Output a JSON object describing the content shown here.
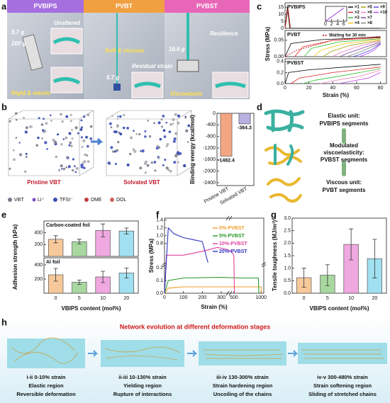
{
  "figure": {
    "panel_labels": [
      "a",
      "b",
      "c",
      "d",
      "e",
      "f",
      "g",
      "h"
    ]
  },
  "photos": {
    "headers": [
      "PVBIPS",
      "PVBT",
      "PVBST"
    ],
    "labels": [
      "5.7 g",
      "200 g",
      "Unaltered",
      "Rigid & elastic",
      "Soft & viscous",
      "Residual strain",
      "5.7 g",
      "16.6 g",
      "Resilience",
      "Viscoelastic"
    ]
  },
  "molecules": {
    "states": [
      "Pristine VBT",
      "Solvated VBT"
    ],
    "legend": [
      "VBT",
      "Li⁺",
      "TFSI⁻",
      "DME",
      "DOL"
    ]
  },
  "schematic": {
    "labels": [
      "Elastic unit:",
      "PVBIPS segments",
      "Modulated",
      "viscoelasticity:",
      "PVBST segments",
      "Viscous unit:",
      "PVBT segments"
    ]
  },
  "network": {
    "title": "Network evolution at different deformation stages",
    "stages": [
      {
        "range": "i-ii  0-10% strain",
        "region": "Elastic region",
        "detail": "Reversible deformation"
      },
      {
        "range": "ii-iii  10-130% strain",
        "region": "Yielding region",
        "detail": "Rupture of interactions"
      },
      {
        "range": "iii-iv  130-300% strain",
        "region": "Strain hardening region",
        "detail": "Uncoiling of the chains"
      },
      {
        "range": "iv-v  300-480% strain",
        "region": "Strain softening region",
        "detail": "Sliding of stretched chains"
      }
    ]
  },
  "chart_data": [
    {
      "type": "line",
      "title": "PVBIPS",
      "xlim": [
        0,
        85
      ],
      "ylim": [
        0,
        18
      ],
      "yticks": [
        0,
        5,
        10,
        15
      ],
      "series": [
        {
          "color": "#000000",
          "x": [
            0,
            2,
            4,
            80
          ],
          "values": [
            0,
            15,
            0,
            0
          ]
        },
        {
          "color": "#e02020",
          "x": [
            0,
            2.5,
            4.5
          ],
          "values": [
            0,
            14,
            0.5
          ]
        }
      ]
    },
    {
      "type": "line",
      "xlim": [
        0,
        7
      ],
      "ylim": [
        0,
        18
      ],
      "xticks": [
        0,
        2,
        4,
        6
      ],
      "series": [
        {
          "color": "#a040e0",
          "x": [
            0,
            6
          ],
          "values": [
            0,
            16
          ]
        }
      ]
    },
    {
      "type": "line",
      "title": "PVBT",
      "xlim": [
        0,
        85
      ],
      "ylim": [
        0,
        0.08
      ],
      "yticks": [
        {
          "value": 0,
          "label": "0.00"
        },
        0.05
      ],
      "ylabel": "Stress (MPa)",
      "legend": true,
      "series": [
        {
          "name": "×1",
          "color": "#000000",
          "x": [
            0,
            5,
            30,
            80
          ],
          "values": [
            0,
            0.04,
            0.052,
            0.06
          ]
        },
        {
          "name": "×2",
          "color": "#e02020",
          "x": [
            8,
            15,
            40,
            80
          ],
          "values": [
            0,
            0.03,
            0.05,
            0.058
          ]
        },
        {
          "name": "×3",
          "color": "#30c030",
          "x": [
            16,
            22,
            45,
            80
          ],
          "values": [
            0,
            0.025,
            0.045,
            0.055
          ]
        },
        {
          "name": "×4",
          "color": "#f0c000",
          "x": [
            24,
            30,
            50,
            80
          ],
          "values": [
            0,
            0.02,
            0.04,
            0.053
          ]
        },
        {
          "name": "×5",
          "color": "#a0a000",
          "x": [
            32,
            38,
            55,
            80
          ],
          "values": [
            0,
            0.015,
            0.035,
            0.05
          ]
        },
        {
          "name": "×6",
          "color": "#f080c0",
          "x": [
            40,
            46,
            60,
            80
          ],
          "values": [
            0,
            0.012,
            0.03,
            0.048
          ]
        },
        {
          "name": "×7",
          "color": "#8040a0",
          "x": [
            46,
            52,
            64,
            80
          ],
          "values": [
            0,
            0.01,
            0.025,
            0.045
          ]
        },
        {
          "name": "×8",
          "color": "#808080",
          "x": [
            52,
            58,
            68,
            80
          ],
          "values": [
            0,
            0.008,
            0.022,
            0.042
          ]
        },
        {
          "name": "×9",
          "color": "#4040e0",
          "x": [
            57,
            62,
            72,
            80
          ],
          "values": [
            0,
            0.006,
            0.02,
            0.04
          ]
        },
        {
          "name": "×10",
          "color": "#c040f0",
          "x": [
            62,
            66,
            74,
            80
          ],
          "values": [
            0,
            0.005,
            0.018,
            0.038
          ]
        },
        {
          "name": "Waiting for 30 min",
          "color": "#c00000",
          "dash": true,
          "x": [
            0,
            10,
            40,
            80
          ],
          "values": [
            0,
            0.02,
            0.05,
            0.062
          ]
        }
      ]
    },
    {
      "type": "line",
      "title": "PVBST",
      "xlim": [
        0,
        85
      ],
      "ylim": [
        0,
        0.45
      ],
      "yticks": [
        {
          "value": 0,
          "label": "0.0"
        },
        0.2,
        0.4
      ],
      "xticks": [
        0,
        20,
        40,
        60,
        80
      ],
      "xlabel": "Strain (%)",
      "series": [
        {
          "color": "#000000",
          "x": [
            0,
            3,
            20,
            80
          ],
          "values": [
            0,
            0.2,
            0.25,
            0.35
          ]
        },
        {
          "color": "#e02020",
          "x": [
            5,
            12,
            40,
            80
          ],
          "values": [
            0,
            0.1,
            0.2,
            0.3
          ]
        },
        {
          "color": "#30c030",
          "x": [
            15,
            25,
            50,
            80
          ],
          "values": [
            0,
            0.06,
            0.15,
            0.27
          ]
        },
        {
          "color": "#f080c0",
          "x": [
            30,
            40,
            60,
            80
          ],
          "values": [
            0,
            0.05,
            0.12,
            0.24
          ]
        },
        {
          "color": "#c040f0",
          "x": [
            45,
            55,
            70,
            80
          ],
          "values": [
            0,
            0.04,
            0.1,
            0.2
          ]
        }
      ]
    },
    {
      "type": "bar",
      "categories": [
        "Pristine VBT",
        "Solvated VBT"
      ],
      "values": [
        -1482.4,
        -364.3
      ],
      "show_values": true,
      "colors": [
        "#f4a582",
        "#b8b0e0"
      ],
      "ylim": [
        -2500,
        0
      ],
      "yticks": [
        0,
        -400,
        -800,
        -1200,
        -1600,
        -2000,
        -2400
      ],
      "ylabel": "Binding energy (kcal/mol)"
    },
    {
      "type": "bar",
      "title": "Carbon-coated foil",
      "values": [
        290,
        250,
        440,
        430
      ],
      "errors": [
        60,
        40,
        110,
        50
      ],
      "colors": [
        "#f7c99a",
        "#a8d8a0",
        "#f0a8e0",
        "#a0e0f0"
      ],
      "ylim": [
        0,
        600
      ],
      "yticks": [
        200,
        400
      ],
      "ylabel": "Adhesion strength (kPa)"
    },
    {
      "type": "bar",
      "title": "Al foil",
      "categories": [
        "0",
        "5",
        "10",
        "20"
      ],
      "values": [
        260,
        155,
        230,
        285
      ],
      "errors": [
        90,
        30,
        80,
        70
      ],
      "colors": [
        "#f7c99a",
        "#a8d8a0",
        "#f0a8e0",
        "#a0e0f0"
      ],
      "ylim": [
        0,
        500
      ],
      "yticks": [
        200,
        400
      ],
      "xlabel": "VBIPS content (mol%)"
    },
    {
      "type": "line",
      "xlim": [
        0,
        1050
      ],
      "xbreak": [
        330,
        450
      ],
      "ylim": [
        0,
        1.45
      ],
      "ybreak": [
        0.22,
        0.35
      ],
      "xticks": [
        0,
        100,
        200,
        300,
        500,
        1000
      ],
      "yticks": [
        {
          "value": 0,
          "label": "0.0"
        },
        0.1,
        0.2,
        0.8,
        {
          "value": 1,
          "label": "1.0"
        },
        1.2,
        1.4
      ],
      "xlabel": "Strain (%)",
      "ylabel": "Stress (MPa)",
      "legend": true,
      "series": [
        {
          "name": "0%-PVBST",
          "color": "#f0a030",
          "x": [
            0,
            20,
            100,
            300,
            600,
            1000,
            1010
          ],
          "values": [
            0,
            0.04,
            0.05,
            0.05,
            0.05,
            0.05,
            0
          ]
        },
        {
          "name": "5%-PVBST",
          "color": "#2a9a2a",
          "x": [
            0,
            20,
            100,
            300,
            600,
            950,
            960
          ],
          "values": [
            0,
            0.1,
            0.12,
            0.125,
            0.12,
            0.12,
            0
          ]
        },
        {
          "name": "10%-PVBST",
          "color": "#e040a0",
          "x": [
            0,
            10,
            100,
            200,
            280,
            330,
            450,
            500,
            510
          ],
          "values": [
            0,
            0.5,
            0.5,
            0.6,
            0.7,
            0.65,
            0.6,
            0.5,
            0
          ]
        },
        {
          "name": "20%-PVBST",
          "color": "#3030c0",
          "x": [
            0,
            20,
            50,
            100,
            150,
            200,
            230
          ],
          "values": [
            0,
            1.2,
            1.05,
            0.95,
            0.9,
            0.85,
            0.3
          ]
        }
      ]
    },
    {
      "type": "bar",
      "categories": [
        "0",
        "5",
        "10",
        "20"
      ],
      "values": [
        0.62,
        0.72,
        1.95,
        1.38
      ],
      "errors": [
        0.38,
        0.42,
        0.62,
        0.77
      ],
      "colors": [
        "#f7c99a",
        "#a8d8a0",
        "#f0a8e0",
        "#a0e0f0"
      ],
      "ylim": [
        0,
        3.0
      ],
      "yticks": [
        {
          "value": 0,
          "label": "0.0"
        },
        0.5,
        {
          "value": 1,
          "label": "1.0"
        },
        1.5,
        {
          "value": 2,
          "label": "2.0"
        },
        2.5,
        {
          "value": 3,
          "label": "3.0"
        }
      ],
      "xlabel": "VBIPS content (mol%)",
      "ylabel": "Tensile toughness (MJ/m³)"
    }
  ]
}
